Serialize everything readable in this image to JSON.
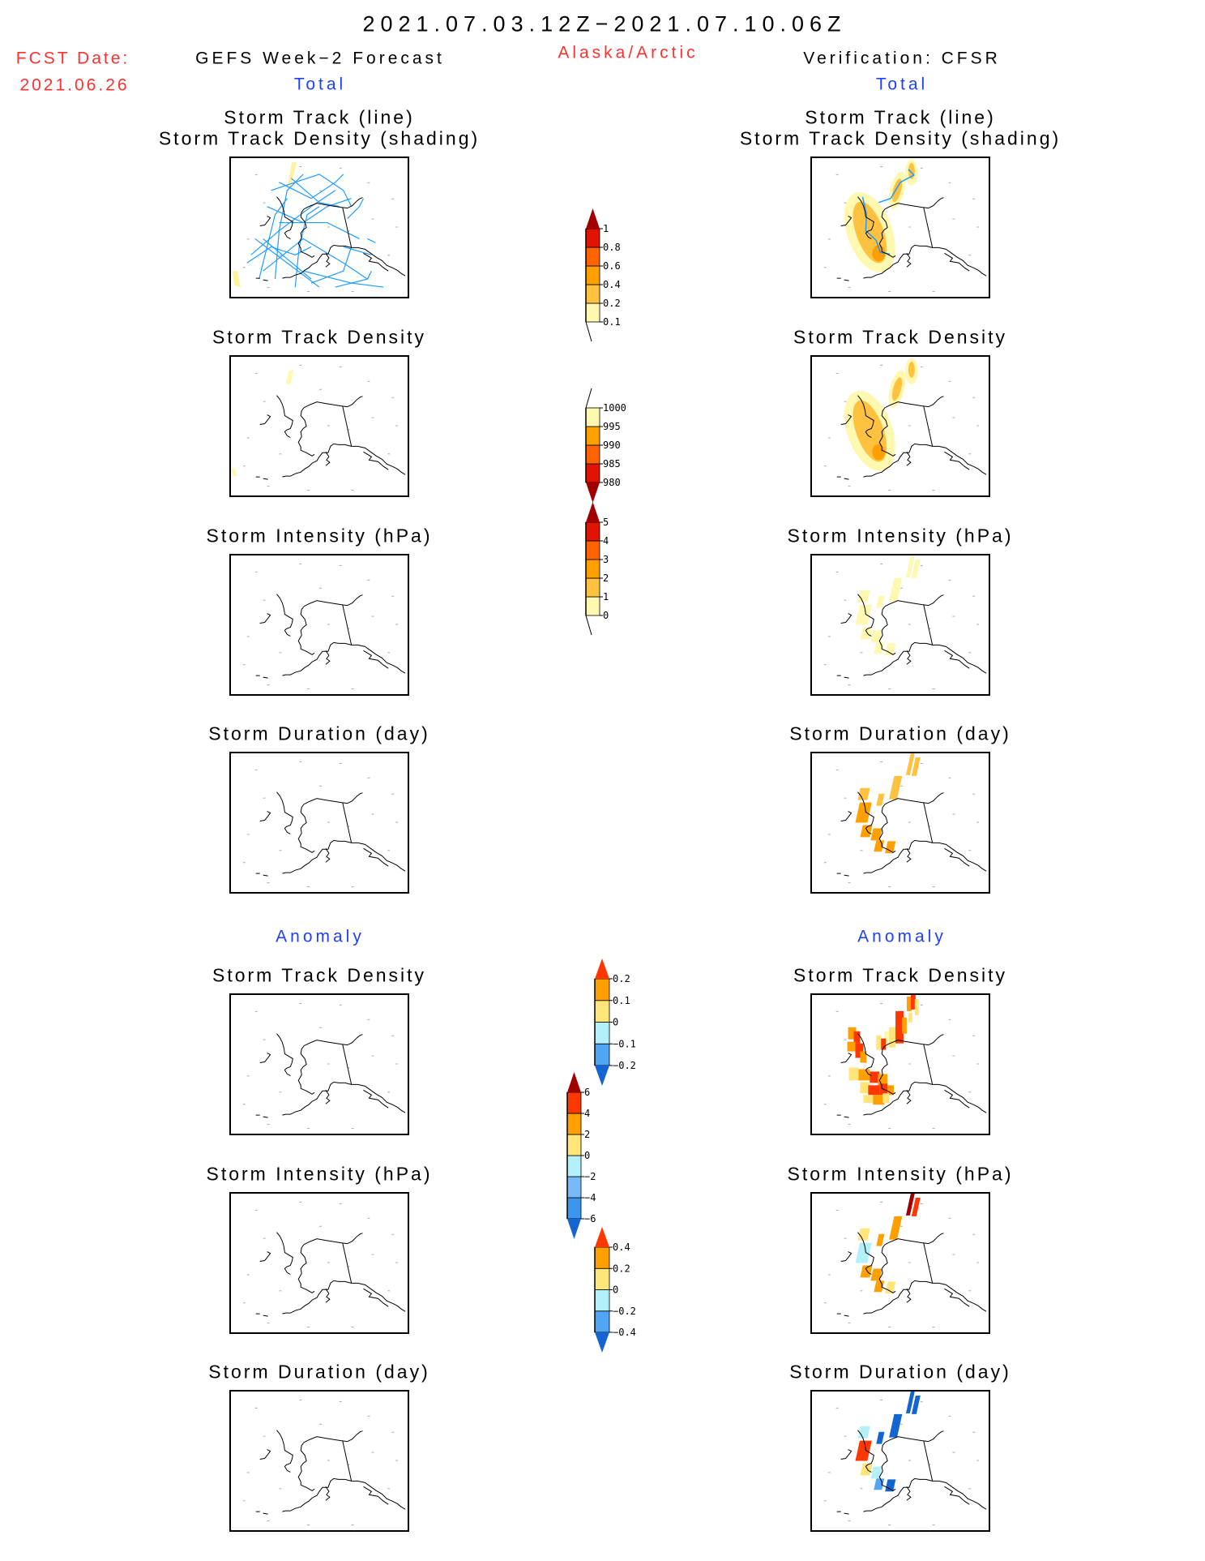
{
  "header": {
    "title": "2021.07.03.12Z−2021.07.10.06Z",
    "fcst_label": "FCST Date:",
    "fcst_date": "2021.06.26",
    "left_title": "GEFS Week−2 Forecast",
    "region": "Alaska/Arctic",
    "right_title": "Verification: CFSR",
    "total_left": "Total",
    "total_right": "Total",
    "anomaly_left": "Anomaly",
    "anomaly_right": "Anomaly"
  },
  "panels": {
    "track_line": "Storm Track (line)",
    "track_shading": "Storm Track Density (shading)",
    "density": "Storm Track Density",
    "intensity": "Storm Intensity (hPa)",
    "duration": "Storm Duration (day)"
  },
  "colors": {
    "title_red": "#ff3030",
    "label_blue": "#2040ff",
    "track_line": "#1e9bff"
  },
  "chart_data": {
    "type": "heatmap",
    "title": "2021.07.03.12Z-2021.07.10.06Z Alaska/Arctic storm track verification",
    "colorbars": [
      {
        "name": "track-density",
        "labels": [
          "0.1",
          "0.2",
          "0.4",
          "0.6",
          "0.8",
          "1"
        ],
        "colors": [
          "#fff8b0",
          "#ffc240",
          "#ffa000",
          "#ff6400",
          "#e01400"
        ],
        "over": "#a00000",
        "under": null
      },
      {
        "name": "intensity",
        "labels": [
          "980",
          "985",
          "990",
          "995",
          "1000"
        ],
        "colors": [
          "#e01400",
          "#ff6400",
          "#ffa000",
          "#fff8b0"
        ],
        "over": null,
        "under": "#a00000",
        "reverse": true
      },
      {
        "name": "duration",
        "labels": [
          "0",
          "1",
          "2",
          "3",
          "4",
          "5"
        ],
        "colors": [
          "#fff8b0",
          "#ffc240",
          "#ffa000",
          "#ff6400",
          "#e01400"
        ],
        "over": "#a00000",
        "under": null
      },
      {
        "name": "density-anomaly",
        "labels": [
          "-0.2",
          "-0.1",
          "0",
          "0.1",
          "0.2"
        ],
        "colors": [
          "#50a5f5",
          "#b4f0fa",
          "#ffe57a",
          "#ffa000"
        ],
        "over": "#ff3700",
        "under": "#1464d2"
      },
      {
        "name": "intensity-anomaly",
        "labels": [
          "-6",
          "-4",
          "-2",
          "0",
          "2",
          "4",
          "6"
        ],
        "colors": [
          "#3c96f0",
          "#78b9fa",
          "#b4f0fa",
          "#ffe57a",
          "#ffa000",
          "#ff3700"
        ],
        "over": "#a00000",
        "under": "#1464d2"
      },
      {
        "name": "duration-anomaly",
        "labels": [
          "-0.4",
          "-0.2",
          "0",
          "0.2",
          "0.4"
        ],
        "colors": [
          "#50a5f5",
          "#b4f0fa",
          "#ffe57a",
          "#ffa000"
        ],
        "over": "#ff3700",
        "under": "#1464d2"
      }
    ],
    "maps": {
      "gefs_total": {
        "track_density": "near zero (faint 0.1-0.2 at edges)",
        "intensity": "none",
        "duration": "none"
      },
      "cfsr_total": {
        "track_density": "0.1-0.6 over western Alaska / Bering Strait",
        "intensity": "995-1000",
        "duration": "1-3 days"
      },
      "gefs_anomaly": {
        "track_density": "none",
        "intensity": "none",
        "duration": "none"
      },
      "cfsr_anomaly": {
        "track_density": "0 to >0.2 over western Alaska",
        "intensity": "-2 to >6",
        "duration": "-0.4 to >0.4"
      }
    }
  }
}
